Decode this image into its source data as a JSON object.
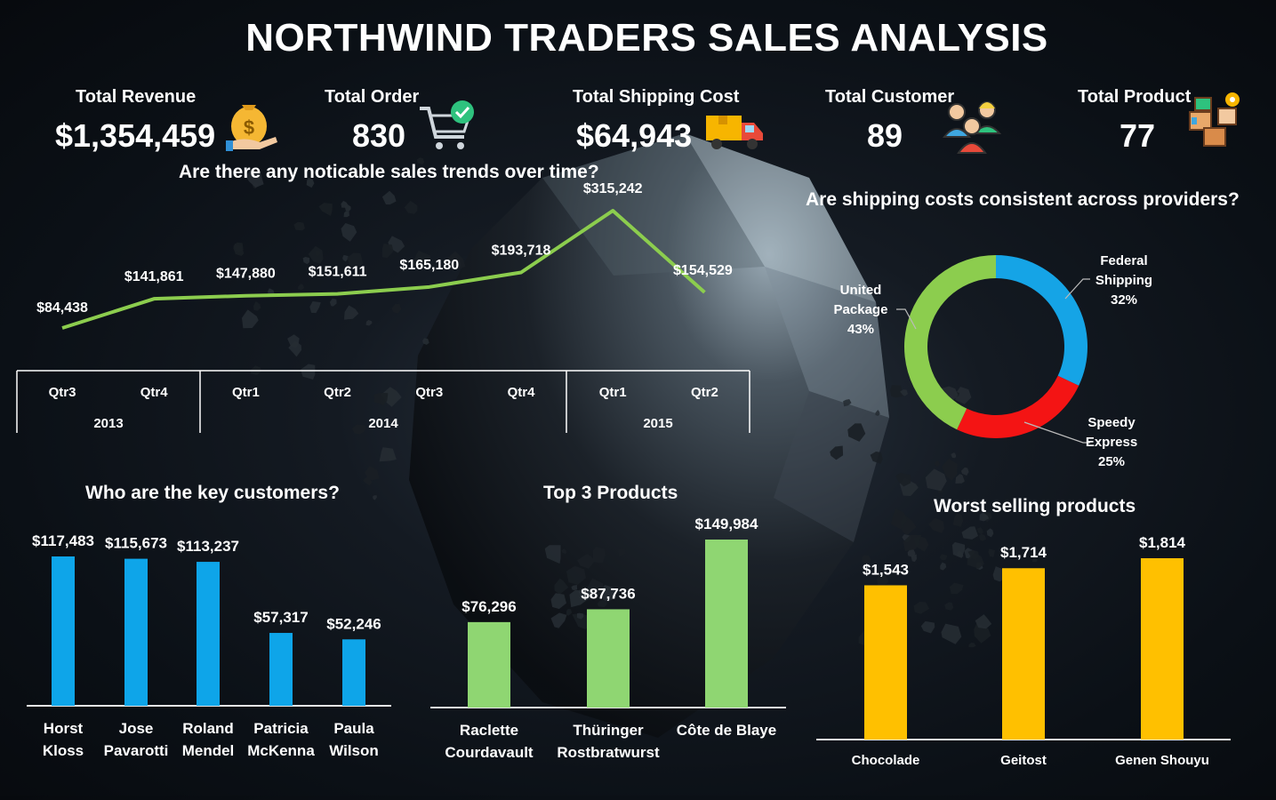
{
  "title": "NORTHWIND TRADERS SALES ANALYSIS",
  "kpis": [
    {
      "label": "Total Revenue",
      "value": "$1,354,459",
      "icon": "money-bag-icon"
    },
    {
      "label": "Total Order",
      "value": "830",
      "icon": "cart-check-icon"
    },
    {
      "label": "Total Shipping Cost",
      "value": "$64,943",
      "icon": "delivery-truck-icon"
    },
    {
      "label": "Total Customer",
      "value": "89",
      "icon": "customers-group-icon"
    },
    {
      "label": "Total Product",
      "value": "77",
      "icon": "product-boxes-icon"
    }
  ],
  "chart_data": [
    {
      "type": "line",
      "title": "Are there any noticable sales trends over time?",
      "x_quarters": [
        "Qtr3",
        "Qtr4",
        "Qtr1",
        "Qtr2",
        "Qtr3",
        "Qtr4",
        "Qtr1",
        "Qtr2"
      ],
      "x_years": [
        "2013",
        "2014",
        "2015"
      ],
      "values": [
        84438,
        141861,
        147880,
        151611,
        165180,
        193718,
        315242,
        154529
      ],
      "data_labels": [
        "$84,438",
        "$141,861",
        "$147,880",
        "$151,611",
        "$165,180",
        "$193,718",
        "$315,242",
        "$154,529"
      ],
      "color": "#8ccd4e"
    },
    {
      "type": "pie",
      "title": "Are shipping costs consistent across providers?",
      "slices": [
        {
          "label": "Federal Shipping",
          "label_lines": [
            "Federal",
            "Shipping"
          ],
          "value": 32,
          "pct": "32%",
          "color": "#15a4e6"
        },
        {
          "label": "Speedy Express",
          "label_lines": [
            "Speedy",
            "Express"
          ],
          "value": 25,
          "pct": "25%",
          "color": "#f41414"
        },
        {
          "label": "United Package",
          "label_lines": [
            "United",
            "Package"
          ],
          "value": 43,
          "pct": "43%",
          "color": "#8ccd4e"
        }
      ]
    },
    {
      "type": "bar",
      "title": "Who are the key customers?",
      "categories": [
        "Horst Kloss",
        "Jose Pavarotti",
        "Roland Mendel",
        "Patricia McKenna",
        "Paula Wilson"
      ],
      "category_lines": [
        [
          "Horst",
          "Kloss"
        ],
        [
          "Jose",
          "Pavarotti"
        ],
        [
          "Roland",
          "Mendel"
        ],
        [
          "Patricia",
          "McKenna"
        ],
        [
          "Paula",
          "Wilson"
        ]
      ],
      "values": [
        117483,
        115673,
        113237,
        57317,
        52246
      ],
      "data_labels": [
        "$117,483",
        "$115,673",
        "$113,237",
        "$57,317",
        "$52,246"
      ],
      "color": "#0ea5e9"
    },
    {
      "type": "bar",
      "title": "Top 3 Products",
      "categories": [
        "Raclette Courdavault",
        "Thüringer Rostbratwurst",
        "Côte de Blaye"
      ],
      "category_lines": [
        [
          "Raclette",
          "Courdavault"
        ],
        [
          "Thüringer",
          "Rostbratwurst"
        ],
        [
          "Côte de Blaye"
        ]
      ],
      "values": [
        76296,
        87736,
        149984
      ],
      "data_labels": [
        "$76,296",
        "$87,736",
        "$149,984"
      ],
      "color": "#8fd672"
    },
    {
      "type": "bar",
      "title": "Worst selling products",
      "categories": [
        "Chocolade",
        "Geitost",
        "Genen Shouyu"
      ],
      "category_lines": [
        [
          "Chocolade"
        ],
        [
          "Geitost"
        ],
        [
          "Genen Shouyu"
        ]
      ],
      "values": [
        1543,
        1714,
        1814
      ],
      "data_labels": [
        "$1,543",
        "$1,714",
        "$1,814"
      ],
      "color": "#ffc000"
    }
  ]
}
